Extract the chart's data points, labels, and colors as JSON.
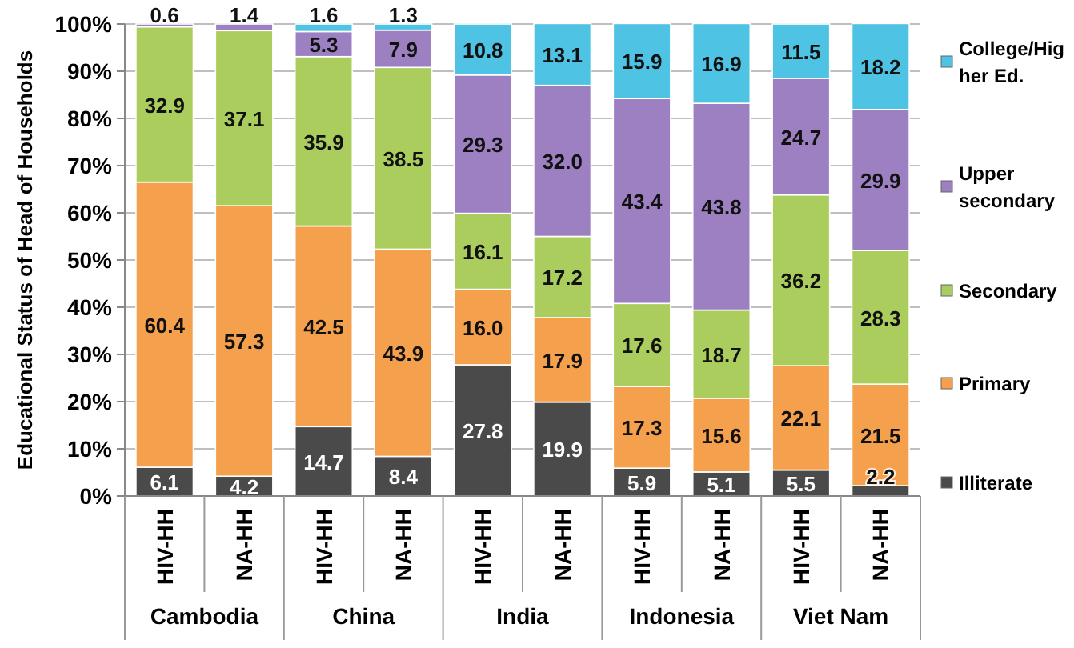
{
  "chart_data": {
    "type": "bar",
    "stacked": true,
    "ylabel": "Educational Status of Head of Households",
    "categories": [
      "HIV-HH",
      "NA-HH",
      "HIV-HH",
      "NA-HH",
      "HIV-HH",
      "NA-HH",
      "HIV-HH",
      "NA-HH",
      "HIV-HH",
      "NA-HH"
    ],
    "annotations": [
      "Cambodia",
      "China",
      "India",
      "Indonesia",
      "Viet Nam"
    ],
    "series": [
      {
        "name": "Illiterate",
        "color": "#4a4a4a",
        "values": [
          6.1,
          4.2,
          14.7,
          8.4,
          27.8,
          19.9,
          5.9,
          5.1,
          5.5,
          2.2
        ],
        "value_labels": [
          "6.1",
          "4.2",
          "14.7",
          "8.4",
          "27.8",
          "19.9",
          "5.9",
          "5.1",
          "5.5",
          "2.2"
        ]
      },
      {
        "name": "Primary",
        "color": "#f4a04c",
        "values": [
          60.4,
          57.3,
          42.5,
          43.9,
          16.0,
          17.9,
          17.3,
          15.6,
          22.1,
          21.5
        ],
        "value_labels": [
          "60.4",
          "57.3",
          "42.5",
          "43.9",
          "16.0",
          "17.9",
          "17.3",
          "15.6",
          "22.1",
          "21.5"
        ]
      },
      {
        "name": "Secondary",
        "color": "#aacd5e",
        "values": [
          32.9,
          37.1,
          35.9,
          38.5,
          16.1,
          17.2,
          17.6,
          18.7,
          36.2,
          28.3
        ],
        "value_labels": [
          "32.9",
          "37.1",
          "35.9",
          "38.5",
          "16.1",
          "17.2",
          "17.6",
          "18.7",
          "36.2",
          "28.3"
        ]
      },
      {
        "name": "Upper secondary",
        "color": "#9d80c2",
        "values": [
          0.6,
          1.4,
          5.3,
          7.9,
          29.3,
          32.0,
          43.4,
          43.8,
          24.7,
          29.9
        ],
        "value_labels": [
          "0.6",
          "1.4",
          "5.3",
          "7.9",
          "29.3",
          "32.0",
          "43.4",
          "43.8",
          "24.7",
          "29.9"
        ]
      },
      {
        "name": "College/Higher Ed.",
        "color": "#4ec3e3",
        "values": [
          0,
          0,
          1.6,
          1.3,
          10.8,
          13.1,
          15.9,
          16.9,
          11.5,
          18.2
        ],
        "value_labels": [
          null,
          null,
          "1.6",
          "1.3",
          "10.8",
          "13.1",
          "15.9",
          "16.9",
          "11.5",
          "18.2"
        ]
      }
    ],
    "ylim": [
      0,
      100
    ],
    "yticks": [
      {
        "value": 0,
        "label": "0%"
      },
      {
        "value": 10,
        "label": "10%"
      },
      {
        "value": 20,
        "label": "20%"
      },
      {
        "value": 30,
        "label": "30%"
      },
      {
        "value": 40,
        "label": "40%"
      },
      {
        "value": 50,
        "label": "50%"
      },
      {
        "value": 60,
        "label": "60%"
      },
      {
        "value": 70,
        "label": "70%"
      },
      {
        "value": 80,
        "label": "80%"
      },
      {
        "value": 90,
        "label": "90%"
      },
      {
        "value": 100,
        "label": "100%"
      }
    ],
    "grid": "y",
    "legend": "right"
  }
}
